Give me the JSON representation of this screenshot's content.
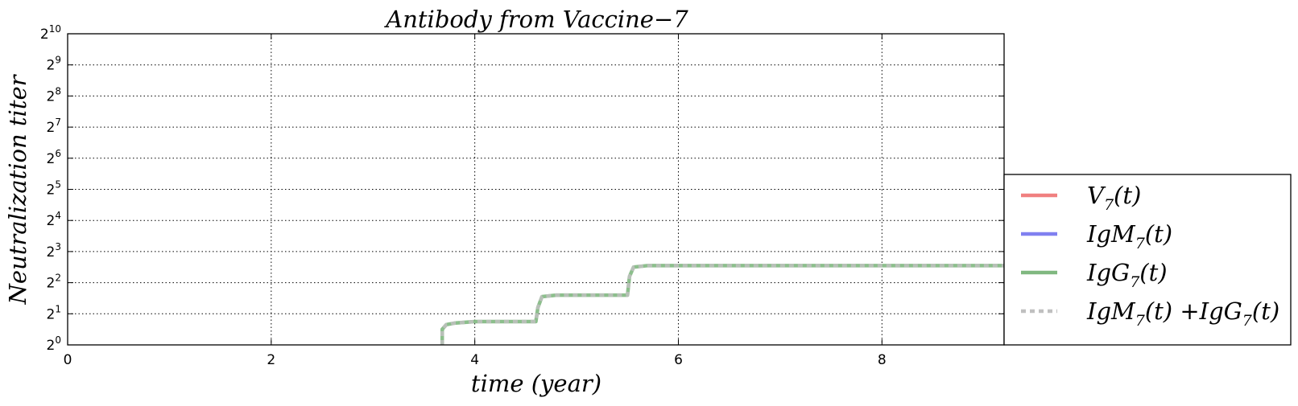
{
  "chart_data": {
    "type": "line",
    "title": "Antibody from Vaccine−7",
    "xlabel": "time (year)",
    "ylabel": "Neutralization  titer",
    "xlim": [
      0,
      9.2
    ],
    "ylim_log2": [
      0,
      10
    ],
    "yscale": "log2",
    "x_ticks": [
      "0",
      "2",
      "4",
      "6",
      "8"
    ],
    "y_ticks": [
      {
        "base": "2",
        "exp": "0"
      },
      {
        "base": "2",
        "exp": "1"
      },
      {
        "base": "2",
        "exp": "2"
      },
      {
        "base": "2",
        "exp": "3"
      },
      {
        "base": "2",
        "exp": "4"
      },
      {
        "base": "2",
        "exp": "5"
      },
      {
        "base": "2",
        "exp": "6"
      },
      {
        "base": "2",
        "exp": "7"
      },
      {
        "base": "2",
        "exp": "8"
      },
      {
        "base": "2",
        "exp": "9"
      },
      {
        "base": "2",
        "exp": "10"
      }
    ],
    "grid": true,
    "legend_position": "lower-right outside",
    "series": [
      {
        "name": "V₇(t)",
        "color": "#f08080",
        "values": []
      },
      {
        "name": "IgM₇(t)",
        "color": "#8080f0",
        "values": []
      },
      {
        "name": "IgG₇(t)",
        "color": "#80b880",
        "x": [
          3.68,
          3.68,
          3.72,
          3.8,
          4.0,
          4.3,
          4.6,
          4.62,
          4.66,
          4.8,
          5.2,
          5.5,
          5.52,
          5.56,
          5.7,
          6.0,
          7.0,
          8.0,
          9.2
        ],
        "y_log2": [
          0.0,
          0.5,
          0.65,
          0.7,
          0.75,
          0.75,
          0.75,
          1.2,
          1.55,
          1.6,
          1.6,
          1.6,
          2.2,
          2.5,
          2.55,
          2.55,
          2.55,
          2.55,
          2.55
        ]
      },
      {
        "name": "IgM₇(t)+IgG₇(t)",
        "color": "#c0c0c0",
        "style": "dotted",
        "x": [
          3.68,
          3.68,
          3.72,
          3.8,
          4.0,
          4.3,
          4.6,
          4.62,
          4.66,
          4.8,
          5.2,
          5.5,
          5.52,
          5.56,
          5.7,
          6.0,
          7.0,
          8.0,
          9.2
        ],
        "y_log2": [
          0.0,
          0.5,
          0.65,
          0.7,
          0.75,
          0.75,
          0.75,
          1.2,
          1.55,
          1.6,
          1.6,
          1.6,
          2.2,
          2.5,
          2.55,
          2.55,
          2.55,
          2.55,
          2.55
        ]
      }
    ],
    "legend": [
      {
        "label": "V",
        "sub": "7",
        "rest": "(t)",
        "color": "#f08080",
        "style": "solid"
      },
      {
        "label": "IgM",
        "sub": "7",
        "rest": "(t)",
        "color": "#8080f0",
        "style": "solid"
      },
      {
        "label": "IgG",
        "sub": "7",
        "rest": "(t)",
        "color": "#80b880",
        "style": "solid"
      },
      {
        "label": "IgM",
        "sub": "7",
        "rest": "(t) +IgG",
        "sub2": "7",
        "rest2": "(t)",
        "color": "#c0c0c0",
        "style": "dotted"
      }
    ]
  }
}
